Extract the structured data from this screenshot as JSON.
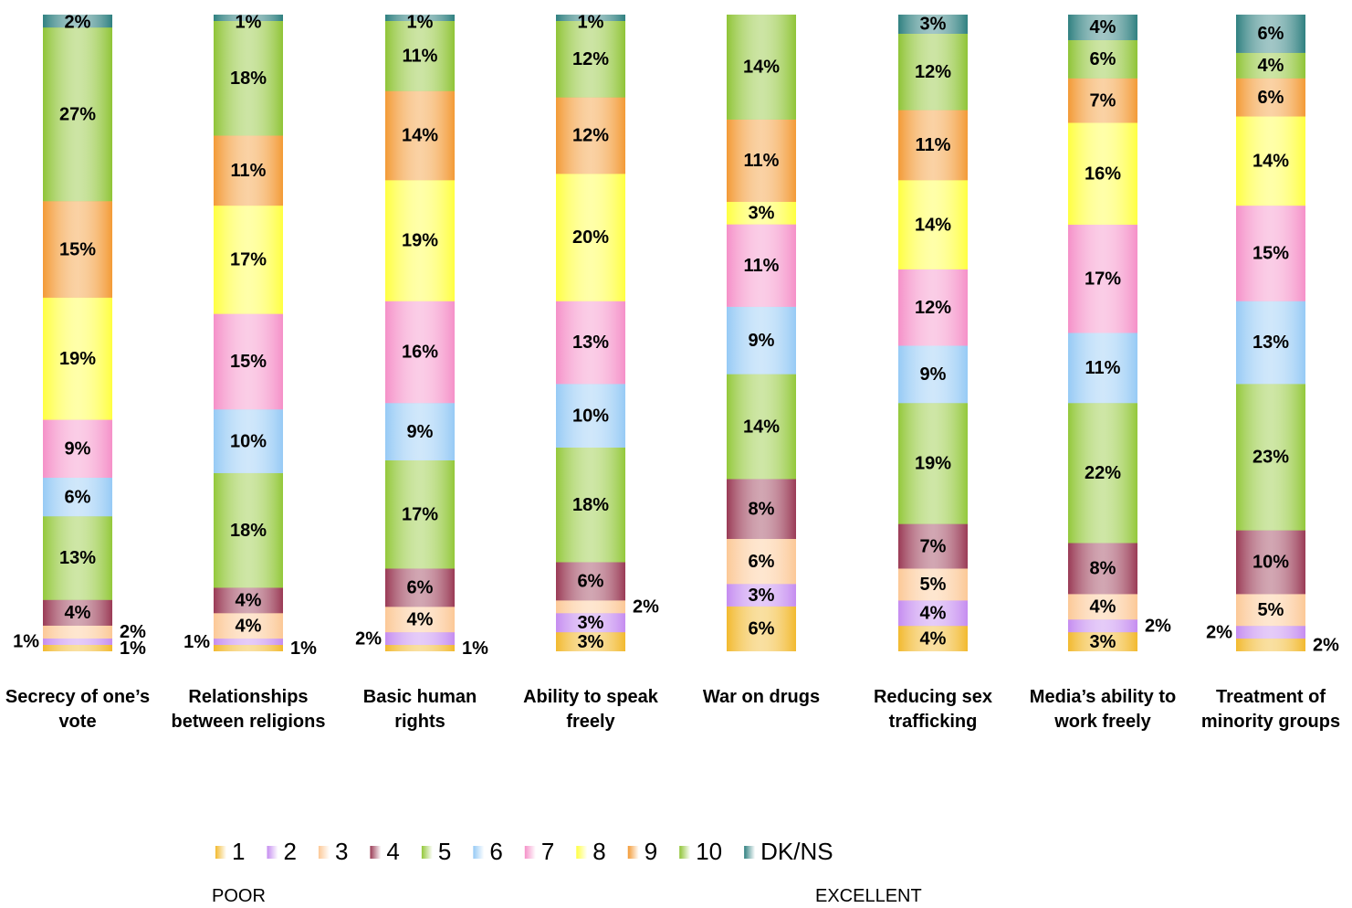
{
  "chart_data": {
    "type": "stacked_percent_bar",
    "categories": [
      "Secrecy of one’s vote",
      "Relationships between religions",
      "Basic human rights",
      "Ability to speak freely",
      "War on drugs",
      "Reducing sex trafficking",
      "Media’s ability to work freely",
      "Treatment of minority groups"
    ],
    "series": [
      {
        "name": "1",
        "color": "#f2b92e",
        "values": [
          1,
          1,
          1,
          3,
          6,
          4,
          3,
          2
        ],
        "value_labels": [
          "1%",
          "1%",
          "1%",
          "3%",
          "6%",
          "4%",
          "3%",
          "2%"
        ]
      },
      {
        "name": "2",
        "color": "#c58cf0",
        "values": [
          1,
          1,
          2,
          3,
          3,
          4,
          2,
          2
        ],
        "value_labels": [
          "1%",
          "1%",
          "2%",
          "3%",
          "3%",
          "4%",
          "2%",
          "2%"
        ]
      },
      {
        "name": "3",
        "color": "#fcc896",
        "values": [
          2,
          4,
          4,
          2,
          6,
          5,
          4,
          5
        ],
        "value_labels": [
          "2%",
          "4%",
          "4%",
          "2%",
          "6%",
          "5%",
          "4%",
          "5%"
        ]
      },
      {
        "name": "4",
        "color": "#9a3a55",
        "values": [
          4,
          4,
          6,
          6,
          8,
          7,
          8,
          10
        ],
        "value_labels": [
          "4%",
          "4%",
          "6%",
          "6%",
          "8%",
          "7%",
          "8%",
          "10%"
        ]
      },
      {
        "name": "5",
        "color": "#93c83a",
        "values": [
          13,
          18,
          17,
          18,
          14,
          19,
          22,
          23
        ],
        "value_labels": [
          "13%",
          "18%",
          "17%",
          "18%",
          "14%",
          "19%",
          "22%",
          "23%"
        ]
      },
      {
        "name": "6",
        "color": "#96caf5",
        "values": [
          6,
          10,
          9,
          10,
          9,
          9,
          11,
          13
        ],
        "value_labels": [
          "6%",
          "10%",
          "9%",
          "10%",
          "9%",
          "9%",
          "11%",
          "13%"
        ]
      },
      {
        "name": "7",
        "color": "#f590c8",
        "values": [
          9,
          15,
          16,
          13,
          11,
          12,
          17,
          15
        ],
        "value_labels": [
          "9%",
          "15%",
          "16%",
          "13%",
          "11%",
          "12%",
          "17%",
          "15%"
        ]
      },
      {
        "name": "8",
        "color": "#ffff40",
        "values": [
          19,
          17,
          19,
          20,
          3,
          14,
          16,
          14
        ],
        "value_labels": [
          "19%",
          "17%",
          "19%",
          "20%",
          "3%",
          "14%",
          "16%",
          "14%"
        ]
      },
      {
        "name": "9",
        "color": "#f39a35",
        "values": [
          15,
          11,
          14,
          12,
          11,
          11,
          7,
          6
        ],
        "value_labels": [
          "15%",
          "11%",
          "14%",
          "12%",
          "11%",
          "11%",
          "7%",
          "6%"
        ]
      },
      {
        "name": "10",
        "color": "#8fc436",
        "values": [
          27,
          18,
          11,
          12,
          14,
          12,
          6,
          4
        ],
        "value_labels": [
          "27%",
          "18%",
          "11%",
          "12%",
          "14%",
          "12%",
          "6%",
          "4%"
        ]
      },
      {
        "name": "DK/NS",
        "color": "#2f8080",
        "values": [
          2,
          1,
          1,
          1,
          null,
          3,
          4,
          6
        ],
        "value_labels": [
          "2%",
          "1%",
          "1%",
          "1%",
          null,
          "3%",
          "4%",
          "6%"
        ]
      }
    ],
    "annotations": [
      "POOR",
      "EXCELLENT"
    ]
  }
}
